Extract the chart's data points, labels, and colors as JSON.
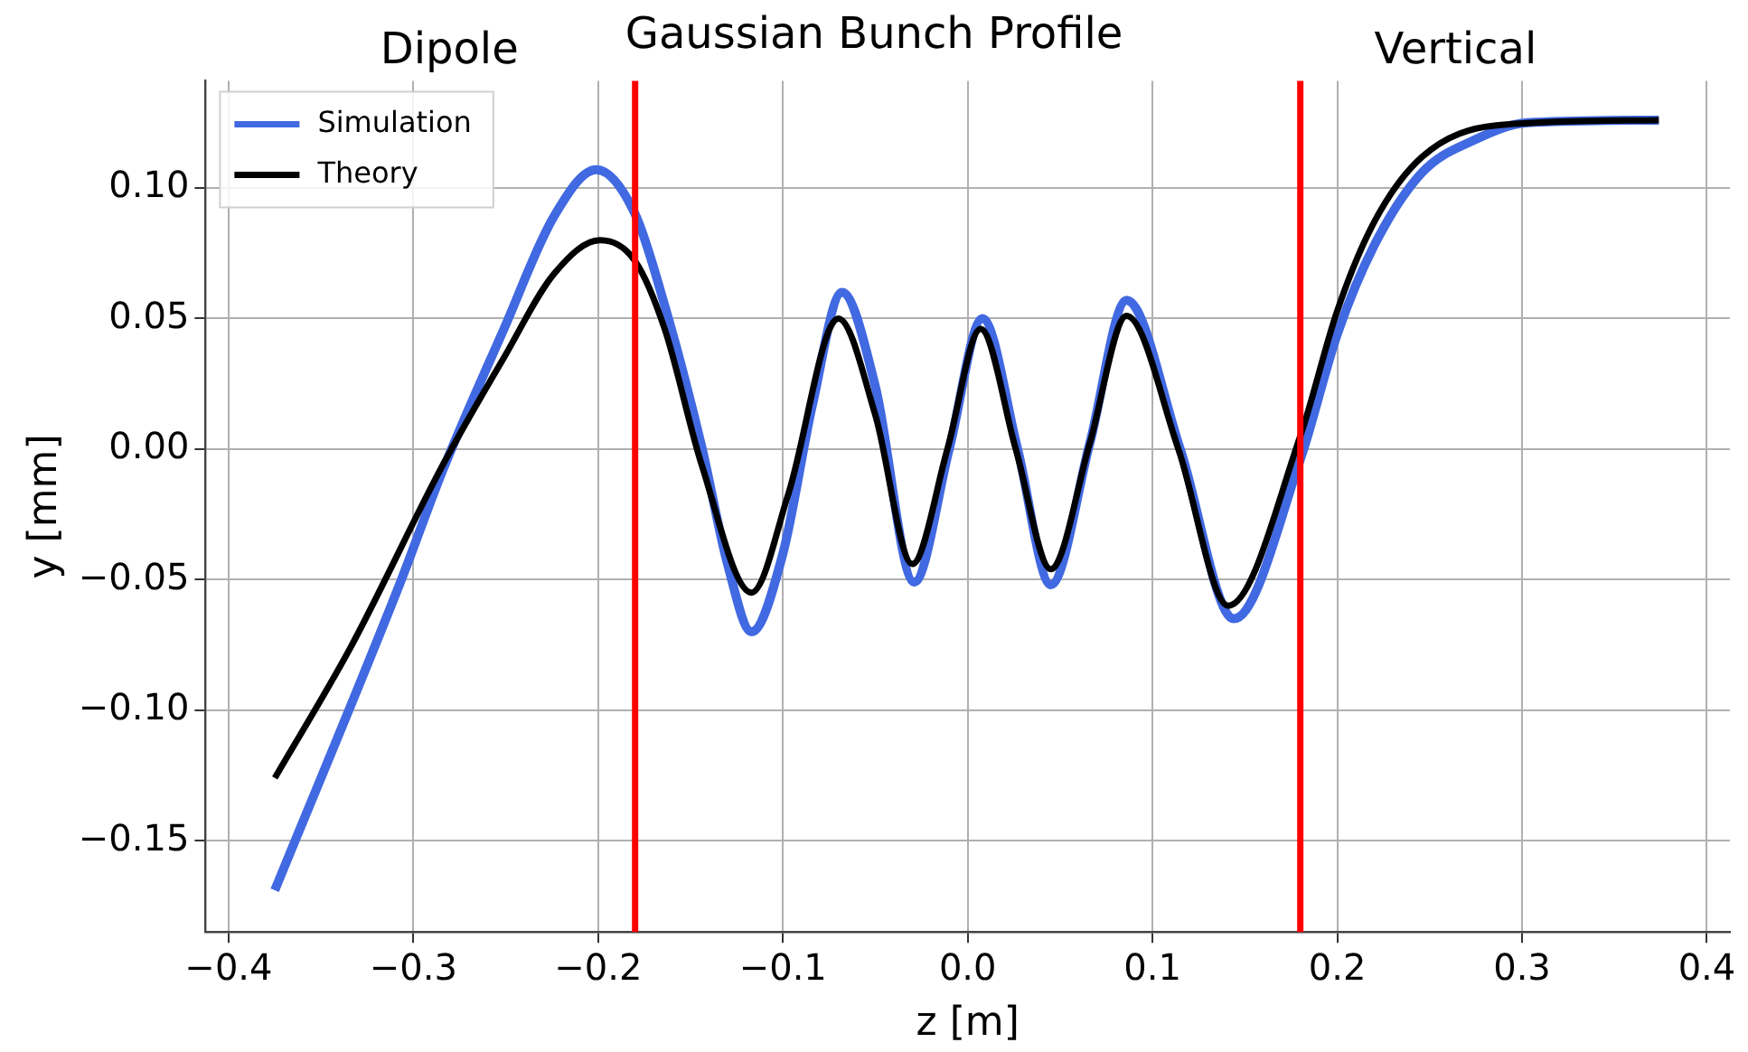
{
  "chart_data": {
    "type": "line",
    "title": "Gaussian Bunch Profile",
    "annotations": [
      "Dipole",
      "Vertical"
    ],
    "xlabel": "z [m]",
    "ylabel": "y [mm]",
    "xlim": [
      -0.4125,
      0.4125
    ],
    "xticks": [
      {
        "value": -0.4,
        "label": "−0.4"
      },
      {
        "value": -0.3,
        "label": "−0.3"
      },
      {
        "value": -0.2,
        "label": "−0.2"
      },
      {
        "value": -0.1,
        "label": "−0.1"
      },
      {
        "value": 0,
        "label": "0.0"
      },
      {
        "value": 0.1,
        "label": "0.1"
      },
      {
        "value": 0.2,
        "label": "0.2"
      },
      {
        "value": 0.3,
        "label": "0.3"
      },
      {
        "value": 0.4,
        "label": "0.4"
      }
    ],
    "ylim": [
      -0.185,
      0.141
    ],
    "yticks": [
      {
        "value": -0.15,
        "label": "−0.15"
      },
      {
        "value": -0.1,
        "label": "−0.10"
      },
      {
        "value": -0.05,
        "label": "−0.05"
      },
      {
        "value": 0,
        "label": "0.00"
      },
      {
        "value": 0.05,
        "label": "0.05"
      },
      {
        "value": 0.1,
        "label": "0.10"
      }
    ],
    "grid": true,
    "legend": "top left",
    "line_style": "solid",
    "series": [
      {
        "name": "Simulation",
        "color": "#4169e1",
        "x": [
          -0.375,
          -0.307,
          -0.284,
          -0.251,
          -0.224,
          -0.201,
          -0.18,
          -0.164,
          -0.144,
          -0.13,
          -0.117,
          -0.1,
          -0.084,
          -0.068,
          -0.05,
          -0.029,
          -0.01,
          0.008,
          0.027,
          0.045,
          0.066,
          0.086,
          0.115,
          0.144,
          0.18,
          0.2,
          0.22,
          0.246,
          0.273,
          0.303,
          0.374
        ],
        "values": [
          -0.169,
          -0.051,
          -0.008,
          0.046,
          0.089,
          0.107,
          0.09,
          0.055,
          0.001,
          -0.044,
          -0.07,
          -0.04,
          0.017,
          0.06,
          0.024,
          -0.051,
          0.0,
          0.05,
          0.0,
          -0.052,
          0.002,
          0.057,
          0.0,
          -0.065,
          -0.004,
          0.044,
          0.078,
          0.106,
          0.118,
          0.125,
          0.126
        ]
      },
      {
        "name": "Theory",
        "color": "#000000",
        "x": [
          -0.375,
          -0.334,
          -0.284,
          -0.251,
          -0.224,
          -0.199,
          -0.18,
          -0.164,
          -0.144,
          -0.117,
          -0.097,
          -0.07,
          -0.05,
          -0.03,
          -0.011,
          0.007,
          0.026,
          0.045,
          0.066,
          0.086,
          0.114,
          0.141,
          0.18,
          0.2,
          0.22,
          0.246,
          0.286,
          0.374
        ],
        "values": [
          -0.126,
          -0.076,
          -0.006,
          0.035,
          0.067,
          0.08,
          0.072,
          0.046,
          -0.006,
          -0.055,
          -0.017,
          0.05,
          0.013,
          -0.044,
          0.0,
          0.046,
          0.0,
          -0.046,
          0.002,
          0.051,
          0.0,
          -0.06,
          0.005,
          0.053,
          0.087,
          0.112,
          0.124,
          0.126
        ]
      }
    ],
    "ref_lines": [
      {
        "axis": "x",
        "value": -0.18,
        "color": "#ff0000"
      },
      {
        "axis": "x",
        "value": 0.18,
        "color": "#ff0000"
      }
    ]
  }
}
